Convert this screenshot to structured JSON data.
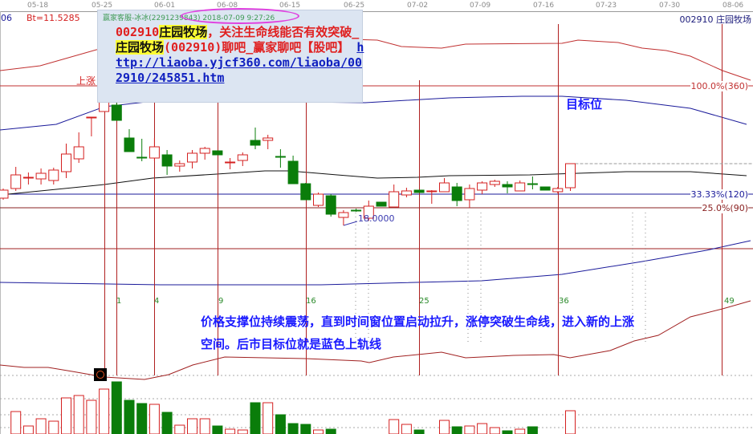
{
  "header": {
    "dates": [
      "05-18",
      "05-25",
      "06-01",
      "06-08",
      "06-15",
      "06-25",
      "07-02",
      "07-09",
      "07-16",
      "07-23",
      "07-30",
      "08-06"
    ],
    "left_code": "06",
    "bt_label": "Bt=11.5285",
    "stock_title": "002910 庄园牧场"
  },
  "overlay": {
    "source": "赢家客服-冰冰(2291239843) 2018-07-09 9:27:26",
    "msg_code": "002910",
    "msg_name1": "庄园牧场",
    "msg_part1": "，关注生命线能否有效突破_",
    "msg_name2": "庄园牧场",
    "msg_part2": "(002910)聊吧_赢家聊吧【股吧】 ",
    "link": "http://liaoba.yjcf360.com/liaoba/002910/245851.htm"
  },
  "labels": {
    "rise": "上涨",
    "target": "目标位",
    "low_price": "18.0000",
    "level_100": "100.0%(360)",
    "level_33": "33.33%(120)",
    "level_25": "25.0%(90)",
    "note1": "价格支撑位持续震荡，直到时间窗位置启动拉升，涨停突破生命线，进入新的上涨",
    "note2": "空间。后市目标位就是蓝色上轨线",
    "time_numbers": [
      "1",
      "4",
      "9",
      "16",
      "25",
      "36",
      "49"
    ]
  },
  "colors": {
    "up": "#d42020",
    "down": "#0a7d0a",
    "band_blue": "#1a1a9a",
    "ma": "#111111",
    "accent_pink": "#e040e0"
  },
  "chart_data": {
    "type": "candlestick",
    "ylim": [
      16.3,
      29.2
    ],
    "levels": [
      {
        "label": "100.0%(360)",
        "price": 24.96
      },
      {
        "label": "33.33%(120)",
        "price": 19.56
      },
      {
        "label": "25.0%(90)",
        "price": 18.88
      }
    ],
    "candles": [
      [
        19.36,
        19.76,
        19.84,
        19.28
      ],
      [
        19.84,
        20.52,
        20.92,
        19.72
      ],
      [
        20.36,
        20.4,
        20.64,
        20.04
      ],
      [
        20.32,
        20.6,
        20.84,
        20.04
      ],
      [
        20.24,
        20.76,
        20.88,
        20.04
      ],
      [
        20.68,
        21.56,
        22.08,
        20.36
      ],
      [
        21.32,
        21.92,
        22.64,
        21.12
      ],
      [
        23.36,
        23.4,
        23.4,
        22.44
      ],
      [
        23.68,
        24.64,
        25.24,
        23.68
      ],
      [
        24.0,
        23.24,
        24.12,
        23.24
      ],
      [
        22.36,
        21.68,
        22.8,
        21.68
      ],
      [
        21.4,
        21.36,
        22.32,
        21.2
      ],
      [
        21.36,
        21.92,
        22.36,
        21.2
      ],
      [
        21.52,
        20.96,
        21.76,
        20.52
      ],
      [
        20.96,
        21.08,
        21.24,
        20.68
      ],
      [
        21.16,
        21.6,
        21.76,
        20.84
      ],
      [
        21.6,
        21.84,
        21.92,
        21.28
      ],
      [
        21.72,
        21.52,
        21.72,
        21.52
      ],
      [
        21.12,
        21.16,
        21.36,
        20.8
      ],
      [
        21.24,
        21.52,
        21.64,
        20.96
      ],
      [
        22.24,
        22.0,
        22.88,
        21.8
      ],
      [
        22.24,
        22.36,
        22.52,
        21.8
      ],
      [
        21.44,
        21.4,
        21.8,
        20.88
      ],
      [
        21.2,
        20.08,
        21.48,
        20.08
      ],
      [
        20.08,
        19.28,
        20.12,
        19.28
      ],
      [
        19.0,
        19.56,
        19.64,
        18.92
      ],
      [
        19.48,
        18.56,
        19.56,
        18.44
      ],
      [
        18.4,
        18.64,
        18.76,
        18.0
      ],
      [
        18.76,
        18.72,
        18.84,
        18.68
      ],
      [
        18.36,
        18.96,
        19.24,
        18.24
      ],
      [
        19.16,
        18.96,
        19.16,
        18.96
      ],
      [
        18.92,
        19.68,
        20.04,
        18.92
      ],
      [
        19.52,
        19.72,
        19.88,
        19.4
      ],
      [
        19.76,
        19.64,
        19.76,
        19.64
      ],
      [
        19.68,
        19.72,
        19.76,
        19.08
      ],
      [
        19.68,
        20.12,
        20.36,
        19.68
      ],
      [
        19.92,
        19.24,
        20.12,
        18.96
      ],
      [
        19.28,
        19.84,
        20.04,
        18.88
      ],
      [
        19.76,
        20.12,
        20.2,
        19.56
      ],
      [
        20.04,
        20.2,
        20.28,
        19.92
      ],
      [
        20.04,
        19.92,
        20.2,
        19.6
      ],
      [
        19.72,
        20.12,
        20.24,
        19.72
      ],
      [
        20.08,
        20.04,
        20.44,
        19.8
      ],
      [
        19.92,
        19.76,
        19.92,
        19.76
      ],
      [
        19.68,
        19.84,
        19.92,
        19.6
      ],
      [
        19.88,
        21.08,
        21.08,
        19.72
      ]
    ],
    "volume_relative": [
      0,
      28,
      10,
      19,
      16,
      45,
      48,
      42,
      56,
      65,
      42,
      38,
      37,
      27,
      11,
      19,
      19,
      10,
      6,
      5,
      39,
      39,
      24,
      13,
      12,
      5,
      6,
      0,
      0,
      0,
      0,
      18,
      12,
      5,
      0,
      17,
      9,
      10,
      13,
      8,
      4,
      6,
      9,
      0,
      0,
      29
    ],
    "time_window_bars": [
      8,
      9,
      12,
      17,
      24,
      33,
      44,
      57
    ]
  }
}
